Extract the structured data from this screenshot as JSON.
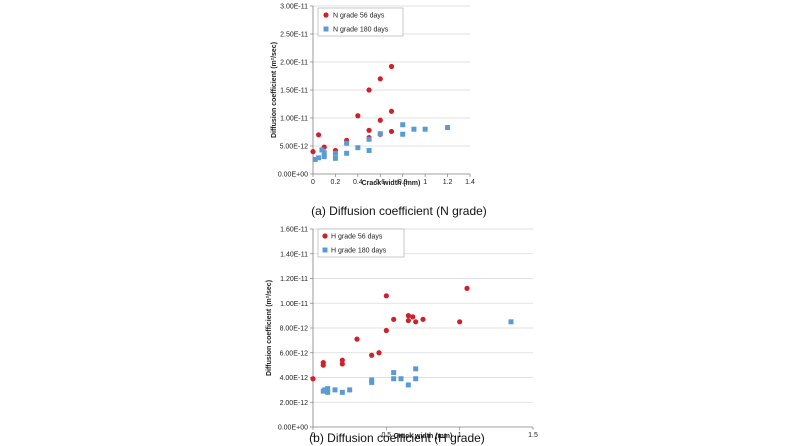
{
  "chart_data": [
    {
      "type": "scatter",
      "xlabel": "Crack width (mm)",
      "ylabel": "Diffusion coefficient (m²/sec)",
      "xlim": [
        0,
        1.4
      ],
      "ylim": [
        0,
        3e-11
      ],
      "x_ticks": [
        "0",
        "0.2",
        "0.4",
        "0.6",
        "0.8",
        "1",
        "1.2",
        "1.4"
      ],
      "y_ticks": [
        "0.00E+00",
        "5.00E-12",
        "1.00E-11",
        "1.50E-11",
        "2.00E-11",
        "2.50E-11",
        "3.00E-11"
      ],
      "grid": "horizontal",
      "legend_position": "top-left",
      "caption": "(a)  Diffusion  coefficient  (N  grade)",
      "series": [
        {
          "name": "N grade 56 days",
          "color": "#d0202a",
          "marker": "circle",
          "points": [
            [
              0.0,
              4e-12
            ],
            [
              0.05,
              7e-12
            ],
            [
              0.1,
              4.8e-12
            ],
            [
              0.2,
              4.2e-12
            ],
            [
              0.3,
              6e-12
            ],
            [
              0.4,
              1.04e-11
            ],
            [
              0.5,
              1.5e-11
            ],
            [
              0.5,
              7.8e-12
            ],
            [
              0.5,
              6.5e-12
            ],
            [
              0.6,
              1.7e-11
            ],
            [
              0.6,
              9.6e-12
            ],
            [
              0.6,
              7.1e-12
            ],
            [
              0.7,
              1.92e-11
            ],
            [
              0.7,
              1.12e-11
            ],
            [
              0.7,
              7.6e-12
            ]
          ]
        },
        {
          "name": "N grade 180 days",
          "color": "#5b9bd5",
          "marker": "square",
          "points": [
            [
              0.02,
              2.6e-12
            ],
            [
              0.05,
              2.9e-12
            ],
            [
              0.08,
              4.3e-12
            ],
            [
              0.1,
              3.8e-12
            ],
            [
              0.1,
              3.1e-12
            ],
            [
              0.2,
              3.7e-12
            ],
            [
              0.2,
              2.8e-12
            ],
            [
              0.3,
              5.5e-12
            ],
            [
              0.3,
              3.7e-12
            ],
            [
              0.4,
              4.7e-12
            ],
            [
              0.5,
              6.2e-12
            ],
            [
              0.5,
              4.2e-12
            ],
            [
              0.6,
              7.2e-12
            ],
            [
              0.8,
              8.8e-12
            ],
            [
              0.8,
              7.1e-12
            ],
            [
              0.9,
              8e-12
            ],
            [
              1.0,
              8e-12
            ],
            [
              1.2,
              8.3e-12
            ]
          ]
        }
      ]
    },
    {
      "type": "scatter",
      "xlabel": "Crack width (mm)",
      "ylabel": "Diffusion coefficient (m²/sec)",
      "xlim": [
        0,
        1.5
      ],
      "ylim": [
        0,
        1.6e-11
      ],
      "x_ticks": [
        "0",
        "0.5",
        "1",
        "1.5"
      ],
      "y_ticks": [
        "0.00E+00",
        "2.00E-12",
        "4.00E-12",
        "6.00E-12",
        "8.00E-12",
        "1.00E-11",
        "1.20E-11",
        "1.40E-11",
        "1.60E-11"
      ],
      "grid": "horizontal",
      "legend_position": "top-left",
      "caption": "(b)  Diffusion  coefficient  (H  grade)",
      "series": [
        {
          "name": "H grade 56 days",
          "color": "#d0202a",
          "marker": "circle",
          "points": [
            [
              0.0,
              3.9e-12
            ],
            [
              0.07,
              5.2e-12
            ],
            [
              0.07,
              5e-12
            ],
            [
              0.2,
              5.4e-12
            ],
            [
              0.2,
              5.1e-12
            ],
            [
              0.3,
              7.1e-12
            ],
            [
              0.4,
              5.8e-12
            ],
            [
              0.45,
              6e-12
            ],
            [
              0.5,
              1.06e-11
            ],
            [
              0.5,
              7.8e-12
            ],
            [
              0.55,
              8.7e-12
            ],
            [
              0.65,
              9e-12
            ],
            [
              0.65,
              8.6e-12
            ],
            [
              0.68,
              8.9e-12
            ],
            [
              0.7,
              8.5e-12
            ],
            [
              0.75,
              8.7e-12
            ],
            [
              1.0,
              8.5e-12
            ],
            [
              1.05,
              1.12e-11
            ]
          ]
        },
        {
          "name": "H grade 180 days",
          "color": "#5b9bd5",
          "marker": "square",
          "points": [
            [
              0.07,
              2.9e-12
            ],
            [
              0.08,
              3e-12
            ],
            [
              0.1,
              3.1e-12
            ],
            [
              0.1,
              2.8e-12
            ],
            [
              0.15,
              3e-12
            ],
            [
              0.2,
              2.8e-12
            ],
            [
              0.25,
              3e-12
            ],
            [
              0.4,
              3.6e-12
            ],
            [
              0.4,
              3.8e-12
            ],
            [
              0.55,
              4.4e-12
            ],
            [
              0.55,
              3.9e-12
            ],
            [
              0.6,
              3.9e-12
            ],
            [
              0.65,
              3.4e-12
            ],
            [
              0.7,
              4.7e-12
            ],
            [
              0.7,
              3.9e-12
            ],
            [
              1.35,
              8.5e-12
            ]
          ]
        }
      ]
    }
  ]
}
